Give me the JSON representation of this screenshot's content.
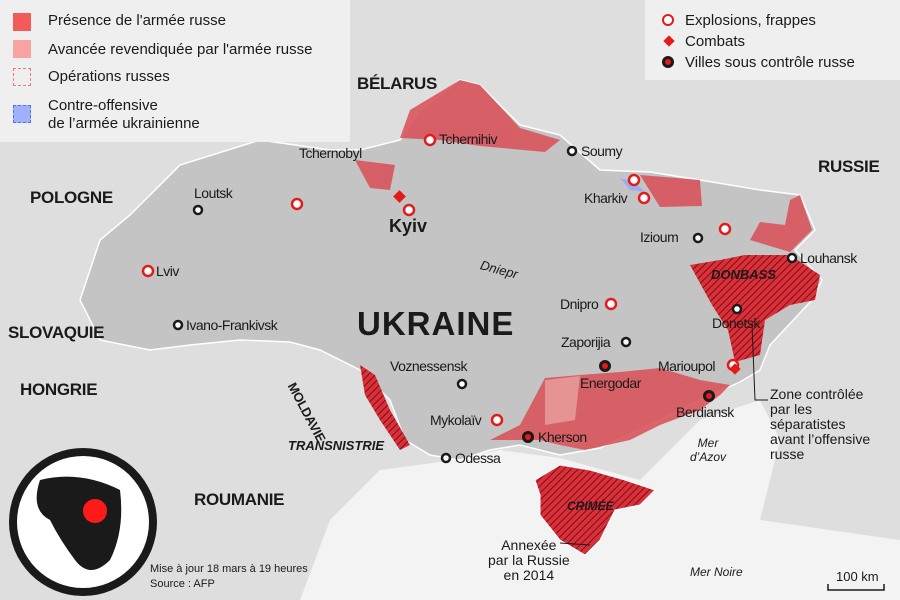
{
  "legend_areas": [
    {
      "label": "Présence de l'armée russe",
      "color": "#f35a5a"
    },
    {
      "label": "Avancée revendiquée par l'armée russe",
      "color": "#f7a3a3"
    },
    {
      "label": "Opérations russes",
      "color": "#f07a7a"
    },
    {
      "label_line1": "Contre-offensive",
      "label_line2": "de l’armée ukrainienne",
      "color": "#8fa3ff"
    }
  ],
  "legend_markers": [
    {
      "label": "Explosions, frappes",
      "icon": "red-ring"
    },
    {
      "label": "Combats",
      "icon": "red-diamond"
    },
    {
      "label": "Villes sous contrôle russe",
      "icon": "black-dot-red-center"
    }
  ],
  "countries": {
    "belarus": "BÉLARUS",
    "russie": "RUSSIE",
    "pologne": "POLOGNE",
    "slovaquie": "SLOVAQUIE",
    "hongrie": "HONGRIE",
    "roumanie": "ROUMANIE",
    "moldavie": "MOLDAVIE",
    "ukraine": "UKRAINE"
  },
  "regions": {
    "transnistrie": "TRANSNISTRIE",
    "donbass": "DONBASS",
    "crimee": "CRIMÉE"
  },
  "water": {
    "dniepr": "Dniepr",
    "azov": "Mer\nd’Azov",
    "mer_noire": "Mer Noire"
  },
  "cities": {
    "tchernobyl": "Tchernobyl",
    "tchernihiv": "Tchernihiv",
    "soumy": "Soumy",
    "kharkiv": "Kharkiv",
    "loutsk": "Loutsk",
    "kyiv": "Kyiv",
    "izioum": "Izioum",
    "louhansk": "Louhansk",
    "lviv": "Lviv",
    "dnipro": "Dnipro",
    "ivano": "Ivano-Frankivsk",
    "donetsk": "Donetsk",
    "zaporijia": "Zaporijia",
    "voznessensk": "Voznessensk",
    "marioupol": "Marioupol",
    "energodar": "Energodar",
    "mykolaiv": "Mykolaïv",
    "berdiansk": "Berdiansk",
    "kherson": "Kherson",
    "odessa": "Odessa"
  },
  "annotations": {
    "zone_separatistes": [
      "Zone contrôlée",
      "par les",
      "séparatistes",
      "avant l’offensive",
      "russe"
    ],
    "crimee_annexee": [
      "Annexée",
      "par la Russie",
      "en 2014"
    ]
  },
  "footer": {
    "update": "Mise à jour 18 mars à 19 heures",
    "source": "Source : AFP"
  },
  "scale": "100 km"
}
